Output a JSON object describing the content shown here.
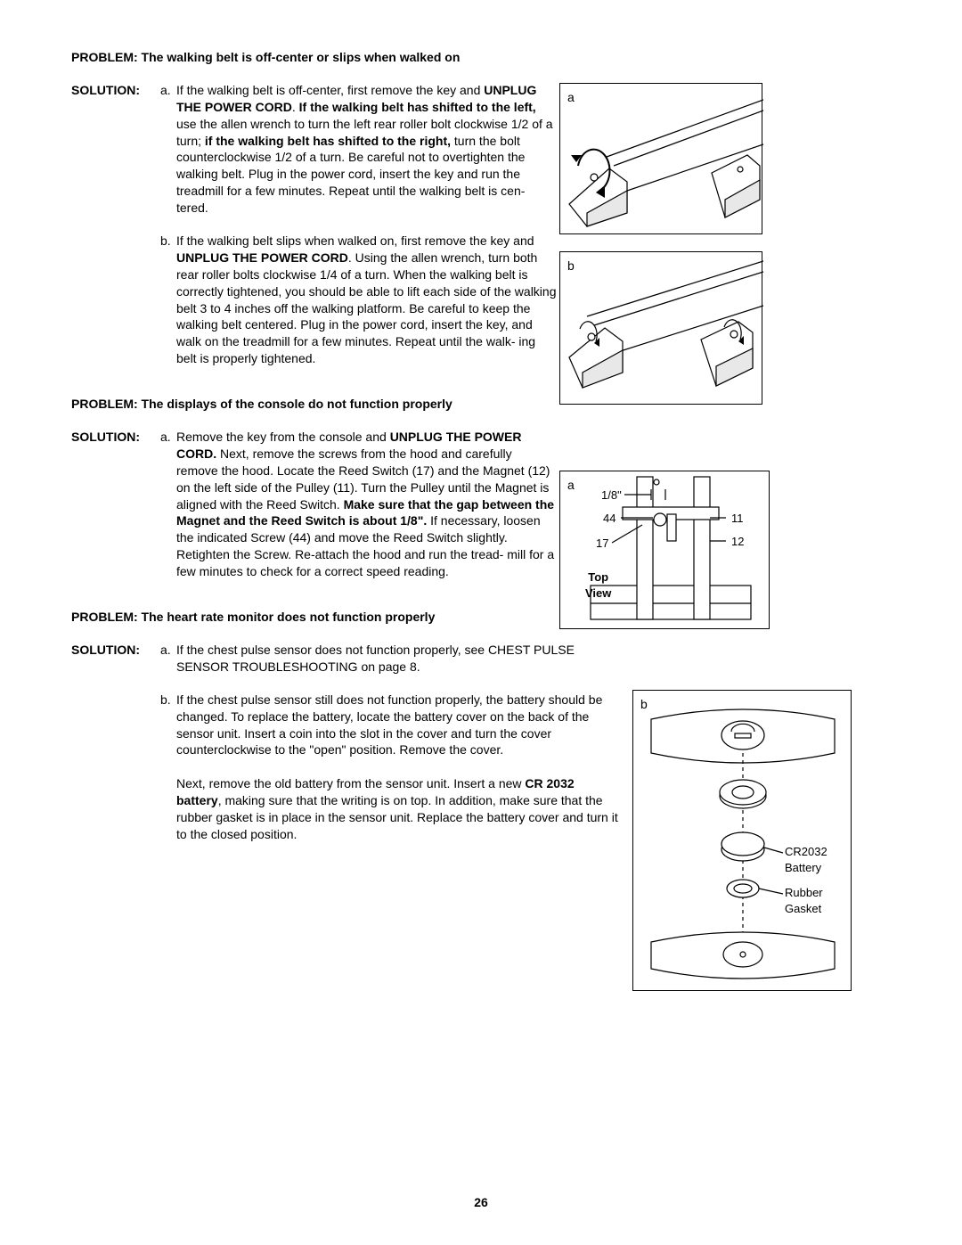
{
  "page_number": "26",
  "problem1": {
    "title": "PROBLEM:  The walking belt is off-center or slips when walked on",
    "solution_label": "SOLUTION:",
    "a_label": "a.",
    "a_html": "If the walking belt is off-center, first remove the key and <b>UNPLUG THE POWER CORD</b>. <b>If the walking belt has shifted to the left,</b> use the allen wrench to turn the left rear roller bolt clockwise 1/2 of a turn; <b>if the walking belt has shifted to the right,</b> turn the bolt counterclockwise 1/2 of a turn. Be careful not to overtighten the walking belt. Plug in the power cord, insert the key and run the treadmill for a few minutes. Repeat until the walking belt is cen- tered.",
    "b_label": "b.",
    "b_html": "If the walking belt slips when walked on, first remove the key and <b>UNPLUG THE POWER CORD</b>. Using the allen wrench, turn both rear roller bolts clockwise 1/4 of a turn. When the walking belt is correctly tightened, you should be able to lift each side of the walking belt 3 to 4 inches off the walking platform. Be careful to keep the walking belt centered. Plug in the power cord, insert the key, and walk on the treadmill for a few minutes. Repeat until the walk- ing belt is properly tightened."
  },
  "problem2": {
    "title": "PROBLEM:  The displays of the console do not function properly",
    "solution_label": "SOLUTION:",
    "a_label": "a.",
    "a_html": "Remove the key from the console and <b>UNPLUG THE POWER CORD.</b> Next, remove the screws from the hood and carefully remove the hood. Locate the Reed Switch (17) and the Magnet (12) on the left side of the Pulley (11). Turn the Pulley until the Magnet is aligned with the Reed Switch. <b>Make sure that the gap between the Magnet and the Reed Switch is about 1/8\".</b> If necessary, loosen the indicated Screw (44) and move the Reed Switch slightly. Retighten the Screw. Re-attach the hood and run the tread- mill for a few minutes to check for a correct speed reading."
  },
  "problem3": {
    "title": "PROBLEM:  The heart rate monitor does not function properly",
    "solution_label": "SOLUTION:",
    "a_label": "a.",
    "a_text": "If the chest pulse sensor does not function properly, see CHEST PULSE SENSOR TROUBLESHOOTING on page 8.",
    "b_label": "b.",
    "b_text1": "If the chest pulse sensor still does not function properly, the battery should be changed. To replace the battery, locate the battery cover on the back of the sensor unit. Insert a coin into the slot in the cover and turn the cover counterclockwise to the \"open\" position. Remove the cover.",
    "b_text2_html": "Next, remove the old battery from the sensor unit. Insert a new <b>CR 2032 battery</b>, making sure that the writing is on top. In addition, make sure that the rubber gasket is in place in the sensor unit. Replace the battery cover and turn it to the closed position."
  },
  "figures": {
    "fig1a": {
      "label": "a"
    },
    "fig1b": {
      "label": "b"
    },
    "fig2a": {
      "label": "a",
      "dim": "1/8\"",
      "n44": "44",
      "n17": "17",
      "n11": "11",
      "n12": "12",
      "topview": "Top\nView"
    },
    "fig3b": {
      "label": "b",
      "battery": "CR2032\nBattery",
      "gasket": "Rubber\nGasket"
    }
  }
}
